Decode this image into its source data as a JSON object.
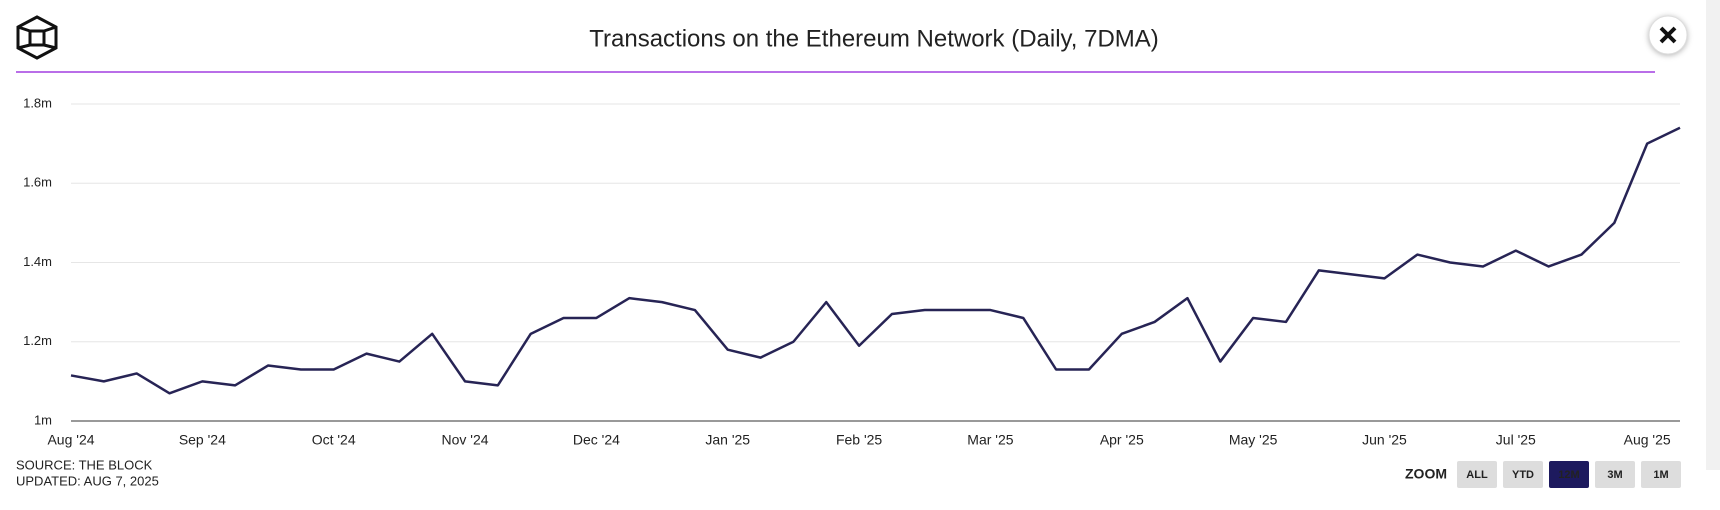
{
  "chart_data": {
    "type": "line",
    "title": "Transactions on the Ethereum Network (Daily, 7DMA)",
    "categories": [
      "Aug '24",
      null,
      null,
      null,
      "Sep '24",
      null,
      null,
      null,
      "Oct '24",
      null,
      null,
      null,
      "Nov '24",
      null,
      null,
      null,
      "Dec '24",
      null,
      null,
      null,
      "Jan '25",
      null,
      null,
      null,
      "Feb '25",
      null,
      null,
      null,
      "Mar '25",
      null,
      null,
      null,
      "Apr '25",
      null,
      null,
      null,
      "May '25",
      null,
      null,
      null,
      "Jun '25",
      null,
      null,
      null,
      "Jul '25",
      null,
      null,
      null,
      "Aug '25",
      null
    ],
    "series": [
      {
        "name": "Transactions",
        "color": "#272455",
        "values": [
          1.115,
          1.1,
          1.12,
          1.07,
          1.1,
          1.09,
          1.14,
          1.13,
          1.13,
          1.17,
          1.15,
          1.22,
          1.1,
          1.09,
          1.22,
          1.26,
          1.26,
          1.31,
          1.3,
          1.28,
          1.18,
          1.16,
          1.2,
          1.3,
          1.19,
          1.27,
          1.28,
          1.28,
          1.28,
          1.26,
          1.13,
          1.13,
          1.22,
          1.25,
          1.31,
          1.15,
          1.26,
          1.25,
          1.38,
          1.37,
          1.36,
          1.42,
          1.4,
          1.39,
          1.43,
          1.39,
          1.42,
          1.5,
          1.7,
          1.74
        ]
      }
    ],
    "ylim": [
      1,
      1.8
    ],
    "yticks": [
      {
        "value": 1,
        "label": "1m"
      },
      {
        "value": 1.2,
        "label": "1.2m"
      },
      {
        "value": 1.4,
        "label": "1.4m"
      },
      {
        "value": 1.6,
        "label": "1.6m"
      },
      {
        "value": 1.8,
        "label": "1.8m"
      }
    ],
    "grid": true
  },
  "footer": {
    "source": "SOURCE: THE BLOCK",
    "updated": "UPDATED: AUG 7, 2025"
  },
  "zoom": {
    "label": "ZOOM",
    "buttons": [
      {
        "label": "ALL"
      },
      {
        "label": "YTD"
      },
      {
        "label": "12M",
        "active": true
      },
      {
        "label": "3M"
      },
      {
        "label": "1M"
      }
    ]
  }
}
